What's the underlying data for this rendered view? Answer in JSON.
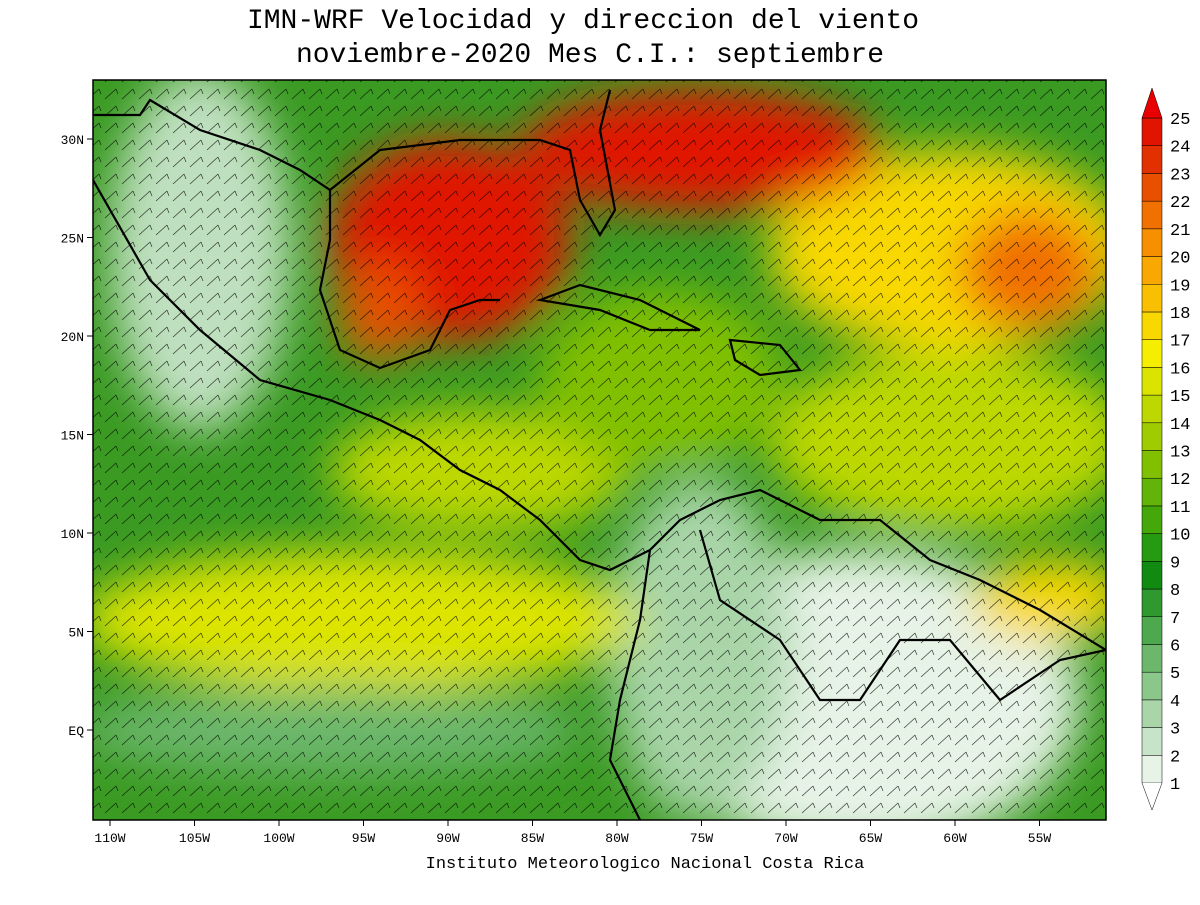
{
  "map": {
    "title": [
      "IMN-WRF Velocidad y direccion del viento",
      "noviembre-2020 Mes C.I.: septiembre"
    ],
    "footer": "Instituto Meteorologico Nacional Costa Rica",
    "lon_ticks": [
      {
        "value": -110,
        "label": "110W"
      },
      {
        "value": -105,
        "label": "105W"
      },
      {
        "value": -100,
        "label": "100W"
      },
      {
        "value": -95,
        "label": "95W"
      },
      {
        "value": -90,
        "label": "90W"
      },
      {
        "value": -85,
        "label": "85W"
      },
      {
        "value": -80,
        "label": "80W"
      },
      {
        "value": -75,
        "label": "75W"
      },
      {
        "value": -70,
        "label": "70W"
      },
      {
        "value": -65,
        "label": "65W"
      },
      {
        "value": -60,
        "label": "60W"
      },
      {
        "value": -55,
        "label": "55W"
      }
    ],
    "lat_ticks": [
      {
        "value": 30,
        "label": "30N"
      },
      {
        "value": 25,
        "label": "25N"
      },
      {
        "value": 20,
        "label": "20N"
      },
      {
        "value": 15,
        "label": "15N"
      },
      {
        "value": 10,
        "label": "10N"
      },
      {
        "value": 5,
        "label": "5N"
      },
      {
        "value": 0,
        "label": "EQ"
      }
    ],
    "colorbar": {
      "levels": [
        1,
        2,
        3,
        4,
        5,
        6,
        7,
        8,
        9,
        10,
        11,
        12,
        13,
        14,
        15,
        16,
        17,
        18,
        19,
        20,
        21,
        22,
        23,
        24,
        25
      ],
      "colors": [
        "#e6f3e6",
        "#c8e4c8",
        "#a9d5a9",
        "#8bc68b",
        "#6cb76c",
        "#4ea84e",
        "#2f992f",
        "#118a11",
        "#269a10",
        "#44a80a",
        "#62b408",
        "#80c000",
        "#9ecc00",
        "#bcd800",
        "#dae400",
        "#f6ee00",
        "#f8d800",
        "#f8c000",
        "#f8a800",
        "#f69000",
        "#f07000",
        "#e85000",
        "#e23000",
        "#e01400"
      ],
      "extend_color": "#e80000"
    }
  }
}
